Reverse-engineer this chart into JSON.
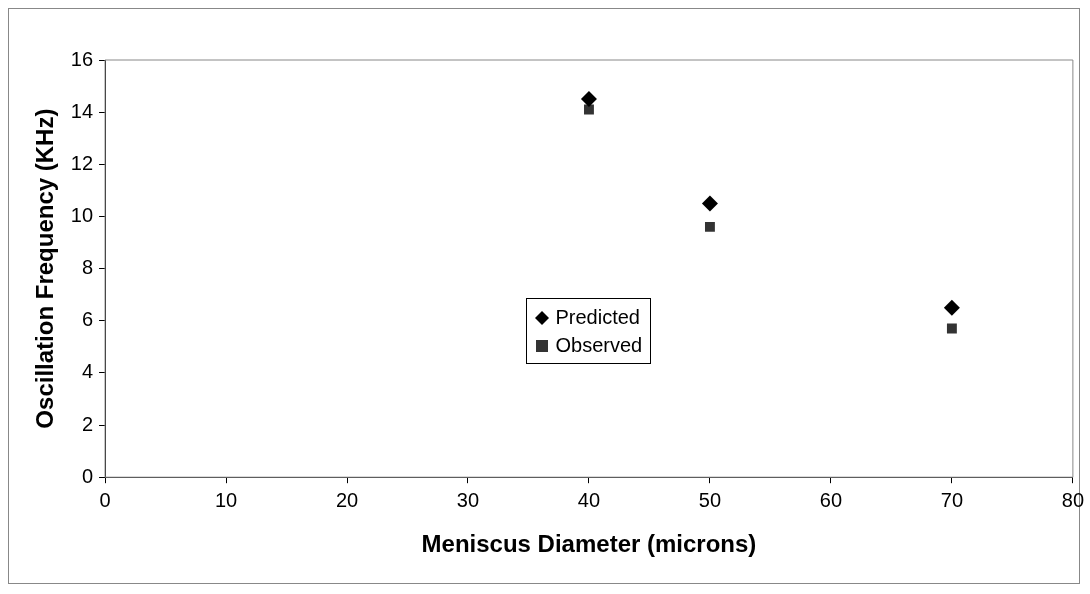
{
  "chart_data": {
    "type": "scatter",
    "xlabel": "Meniscus Diameter (microns)",
    "ylabel": "Oscillation Frequency (KHz)",
    "x": [
      40,
      50,
      70
    ],
    "series": [
      {
        "name": "Predicted",
        "color": "#000000",
        "marker": "diamond",
        "values": [
          14.5,
          10.5,
          6.5
        ]
      },
      {
        "name": "Observed",
        "color": "#333333",
        "marker": "square",
        "values": [
          14.1,
          9.6,
          5.7
        ]
      }
    ],
    "xlim": [
      0,
      80
    ],
    "xticks": [
      0,
      10,
      20,
      30,
      40,
      50,
      60,
      70,
      80
    ],
    "ylim": [
      0,
      16
    ],
    "yticks": [
      0,
      2,
      4,
      6,
      8,
      10,
      12,
      14,
      16
    ],
    "grid": false,
    "legend": "center"
  }
}
